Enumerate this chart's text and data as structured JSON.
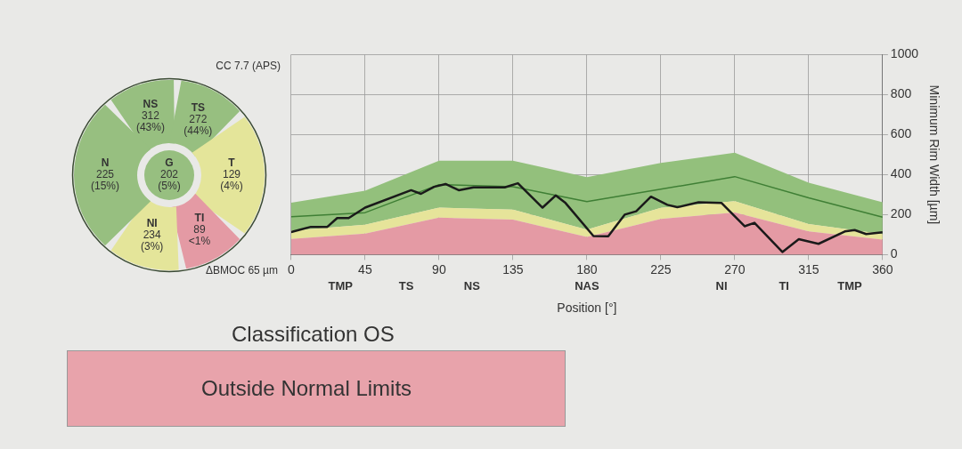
{
  "chart_data": [
    {
      "type": "other",
      "categories": [
        "NS",
        "TS",
        "T",
        "TI",
        "NI",
        "N",
        "G"
      ],
      "values": [
        312,
        272,
        129,
        89,
        234,
        225,
        202
      ],
      "data_labels": true,
      "colors": [
        "#97bf80",
        "#97bf80",
        "#e4e59a",
        "#e49aa4",
        "#e4e59a",
        "#97bf80",
        "#97bf80"
      ],
      "annotations": [
        "CC 7.7 (APS)",
        "ΔBMOC 65 µm",
        "(43%)",
        "(44%)",
        "(4%)",
        "<1%",
        "(3%)",
        "(15%)",
        "(5%)"
      ]
    },
    {
      "type": "line",
      "xlabel": "Position [°]",
      "ylabel": "Minimum Rim Width [µm]",
      "xlim": [
        0,
        360
      ],
      "xticks": [
        0,
        45,
        90,
        135,
        180,
        225,
        270,
        315,
        360
      ],
      "ylim": [
        0,
        1000
      ],
      "yticks": [
        0,
        200,
        400,
        600,
        800,
        1000
      ],
      "grid": true,
      "stacked": true,
      "series": [
        {
          "type": "area",
          "color": "#e49aa4",
          "x": [
            0,
            45,
            90,
            135,
            180,
            225,
            270,
            315,
            360
          ],
          "values": [
            78,
            105,
            185,
            175,
            88,
            178,
            211,
            116,
            75
          ]
        },
        {
          "type": "area",
          "color": "#e6e49a",
          "x": [
            0,
            45,
            90,
            135,
            180,
            225,
            270,
            315,
            360
          ],
          "values": [
            42,
            45,
            50,
            50,
            37,
            56,
            56,
            37,
            28
          ]
        },
        {
          "type": "area",
          "color": "#93c07c",
          "x": [
            0,
            45,
            90,
            135,
            180,
            225,
            270,
            315,
            360
          ],
          "values": [
            140,
            170,
            235,
            245,
            262,
            224,
            243,
            207,
            159
          ]
        },
        {
          "type": "line",
          "color": "#3f7f35",
          "x": [
            0,
            45,
            90,
            135,
            180,
            225,
            270,
            315,
            360
          ],
          "values": [
            190,
            210,
            350,
            340,
            265,
            327,
            390,
            284,
            187
          ]
        },
        {
          "type": "line",
          "color": "#1a1a1a",
          "x": [
            0,
            12,
            22,
            28,
            35,
            45,
            73,
            79,
            87,
            94,
            102,
            111,
            130,
            138,
            153,
            161,
            167,
            184,
            193,
            203,
            210,
            219,
            229,
            235,
            248,
            262,
            276,
            282,
            299,
            309,
            321,
            337,
            343,
            350,
            360
          ],
          "values": [
            113,
            139,
            139,
            183,
            183,
            235,
            322,
            304,
            339,
            353,
            322,
            336,
            336,
            357,
            235,
            296,
            258,
            93,
            92,
            200,
            217,
            290,
            249,
            237,
            262,
            258,
            142,
            159,
            13,
            77,
            54,
            116,
            123,
            103,
            112
          ]
        }
      ],
      "annotations": [
        "TMP",
        "TS",
        "NS",
        "NAS",
        "NI",
        "TI",
        "TMP"
      ]
    },
    {
      "type": "other",
      "title": "Classification OS",
      "annotations": [
        "Outside Normal Limits"
      ],
      "color": "#e8a3ab"
    }
  ]
}
